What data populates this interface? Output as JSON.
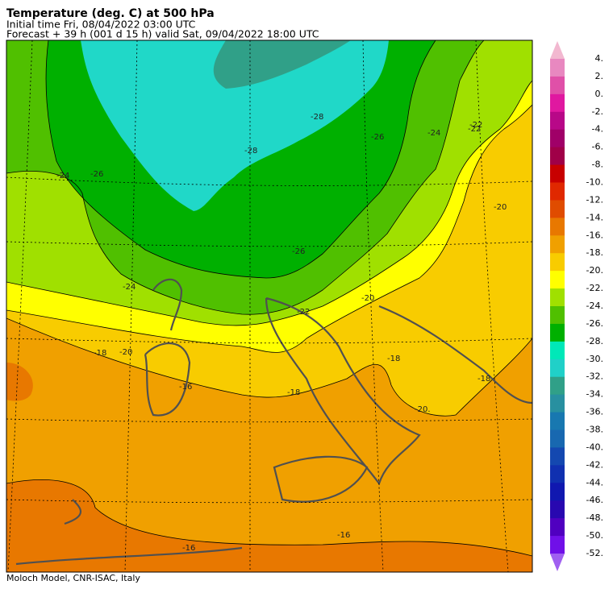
{
  "header": {
    "title": "Temperature (deg. C) at 500 hPa",
    "initial_time": "Initial time  Fri, 08/04/2022  03:00 UTC",
    "forecast": "Forecast  +  39 h  (001 d 15 h)  valid Sat, 09/04/2022 18:00 UTC"
  },
  "legend": {
    "labels": [
      "4.",
      "2.",
      "0.",
      "-2.",
      "-4.",
      "-6.",
      "-8.",
      "-10.",
      "-12.",
      "-14.",
      "-16.",
      "-18.",
      "-20.",
      "-22.",
      "-24.",
      "-26.",
      "-28.",
      "-30.",
      "-32.",
      "-34.",
      "-36.",
      "-38.",
      "-40.",
      "-42.",
      "-44.",
      "-46.",
      "-48.",
      "-50.",
      "-52."
    ],
    "colors": [
      "#f2b8d0",
      "#e888c0",
      "#e050a8",
      "#e018a0",
      "#b80888",
      "#a00068",
      "#a00048",
      "#c80000",
      "#e02800",
      "#e04c00",
      "#e87800",
      "#f0a000",
      "#f8cc00",
      "#ffff00",
      "#a0e000",
      "#50c000",
      "#00b000",
      "#00e8b8",
      "#20d0c8",
      "#30a088",
      "#2890a0",
      "#1878b0",
      "#1868b0",
      "#1448b0",
      "#1030b0",
      "#1018b0",
      "#2808b0",
      "#5000c0",
      "#7010e8",
      "#a060f0"
    ]
  },
  "contour_labels": [
    "-24",
    "-26",
    "-28",
    "-28",
    "-26",
    "-24",
    "-22",
    "-24",
    "-26",
    "-22",
    "-20",
    "-20",
    "-18",
    "-16",
    "-18",
    "-18",
    "-20",
    "-16",
    "-16",
    "-18",
    "-20.",
    "-22"
  ],
  "footer": "Moloch Model, CNR-ISAC, Italy"
}
